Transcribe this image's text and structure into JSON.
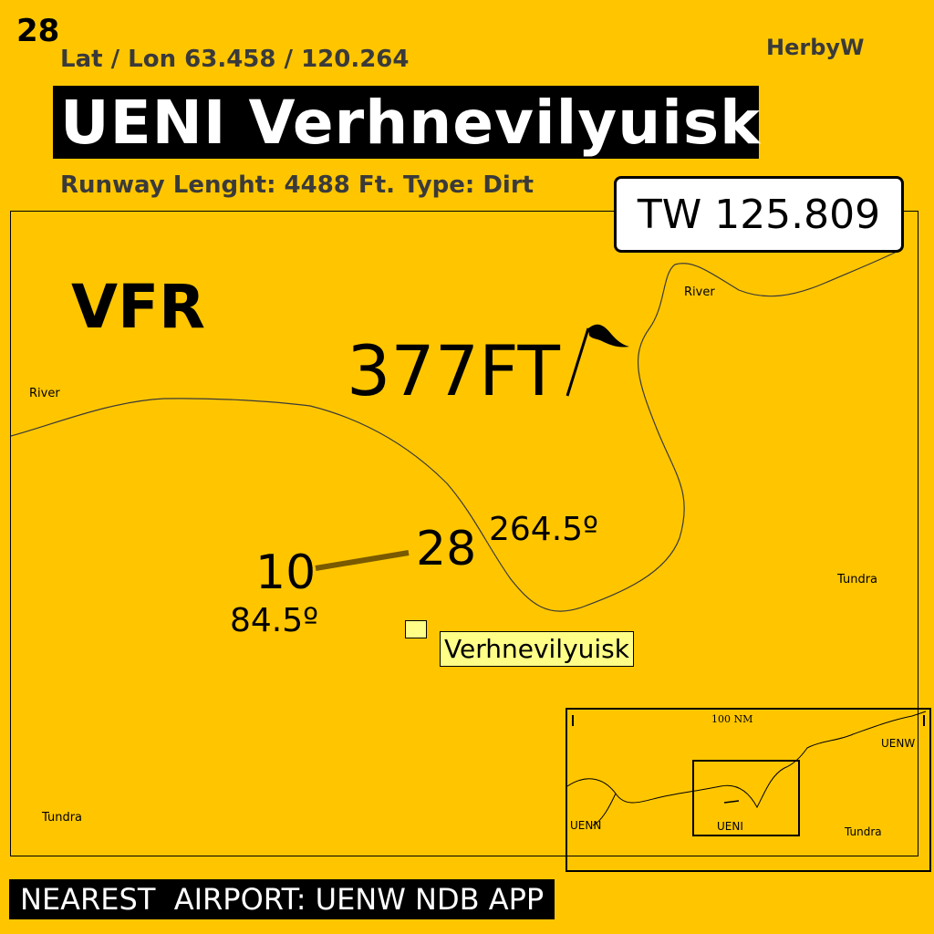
{
  "page_number": "28",
  "coordinates": "Lat / Lon 63.458 / 120.264",
  "author": "HerbyW",
  "title": "UENI Verhnevilyuisk",
  "runway_info": "Runway Lenght: 4488 Ft. Type: Dirt",
  "tower_frequency": "TW 125.809",
  "flight_rules": "VFR",
  "elevation": "377FT",
  "runway": {
    "end_west": "10",
    "end_east": "28",
    "heading_west": "84.5º",
    "heading_east": "264.5º"
  },
  "town": "Verhnevilyuisk",
  "map_labels": {
    "river_top": "River",
    "river_left": "River",
    "tundra_right": "Tundra",
    "tundra_bottom_left": "Tundra"
  },
  "inset_map": {
    "scale": "100 NM",
    "airports": [
      "UENW",
      "UENN",
      "UENI"
    ],
    "terrain": "Tundra"
  },
  "nearest_airport": "NEAREST  AIRPORT: UENW NDB APP",
  "colors": {
    "background": "#FFC600",
    "runway": "#7A5A00",
    "town_fill": "#FFFF88"
  }
}
